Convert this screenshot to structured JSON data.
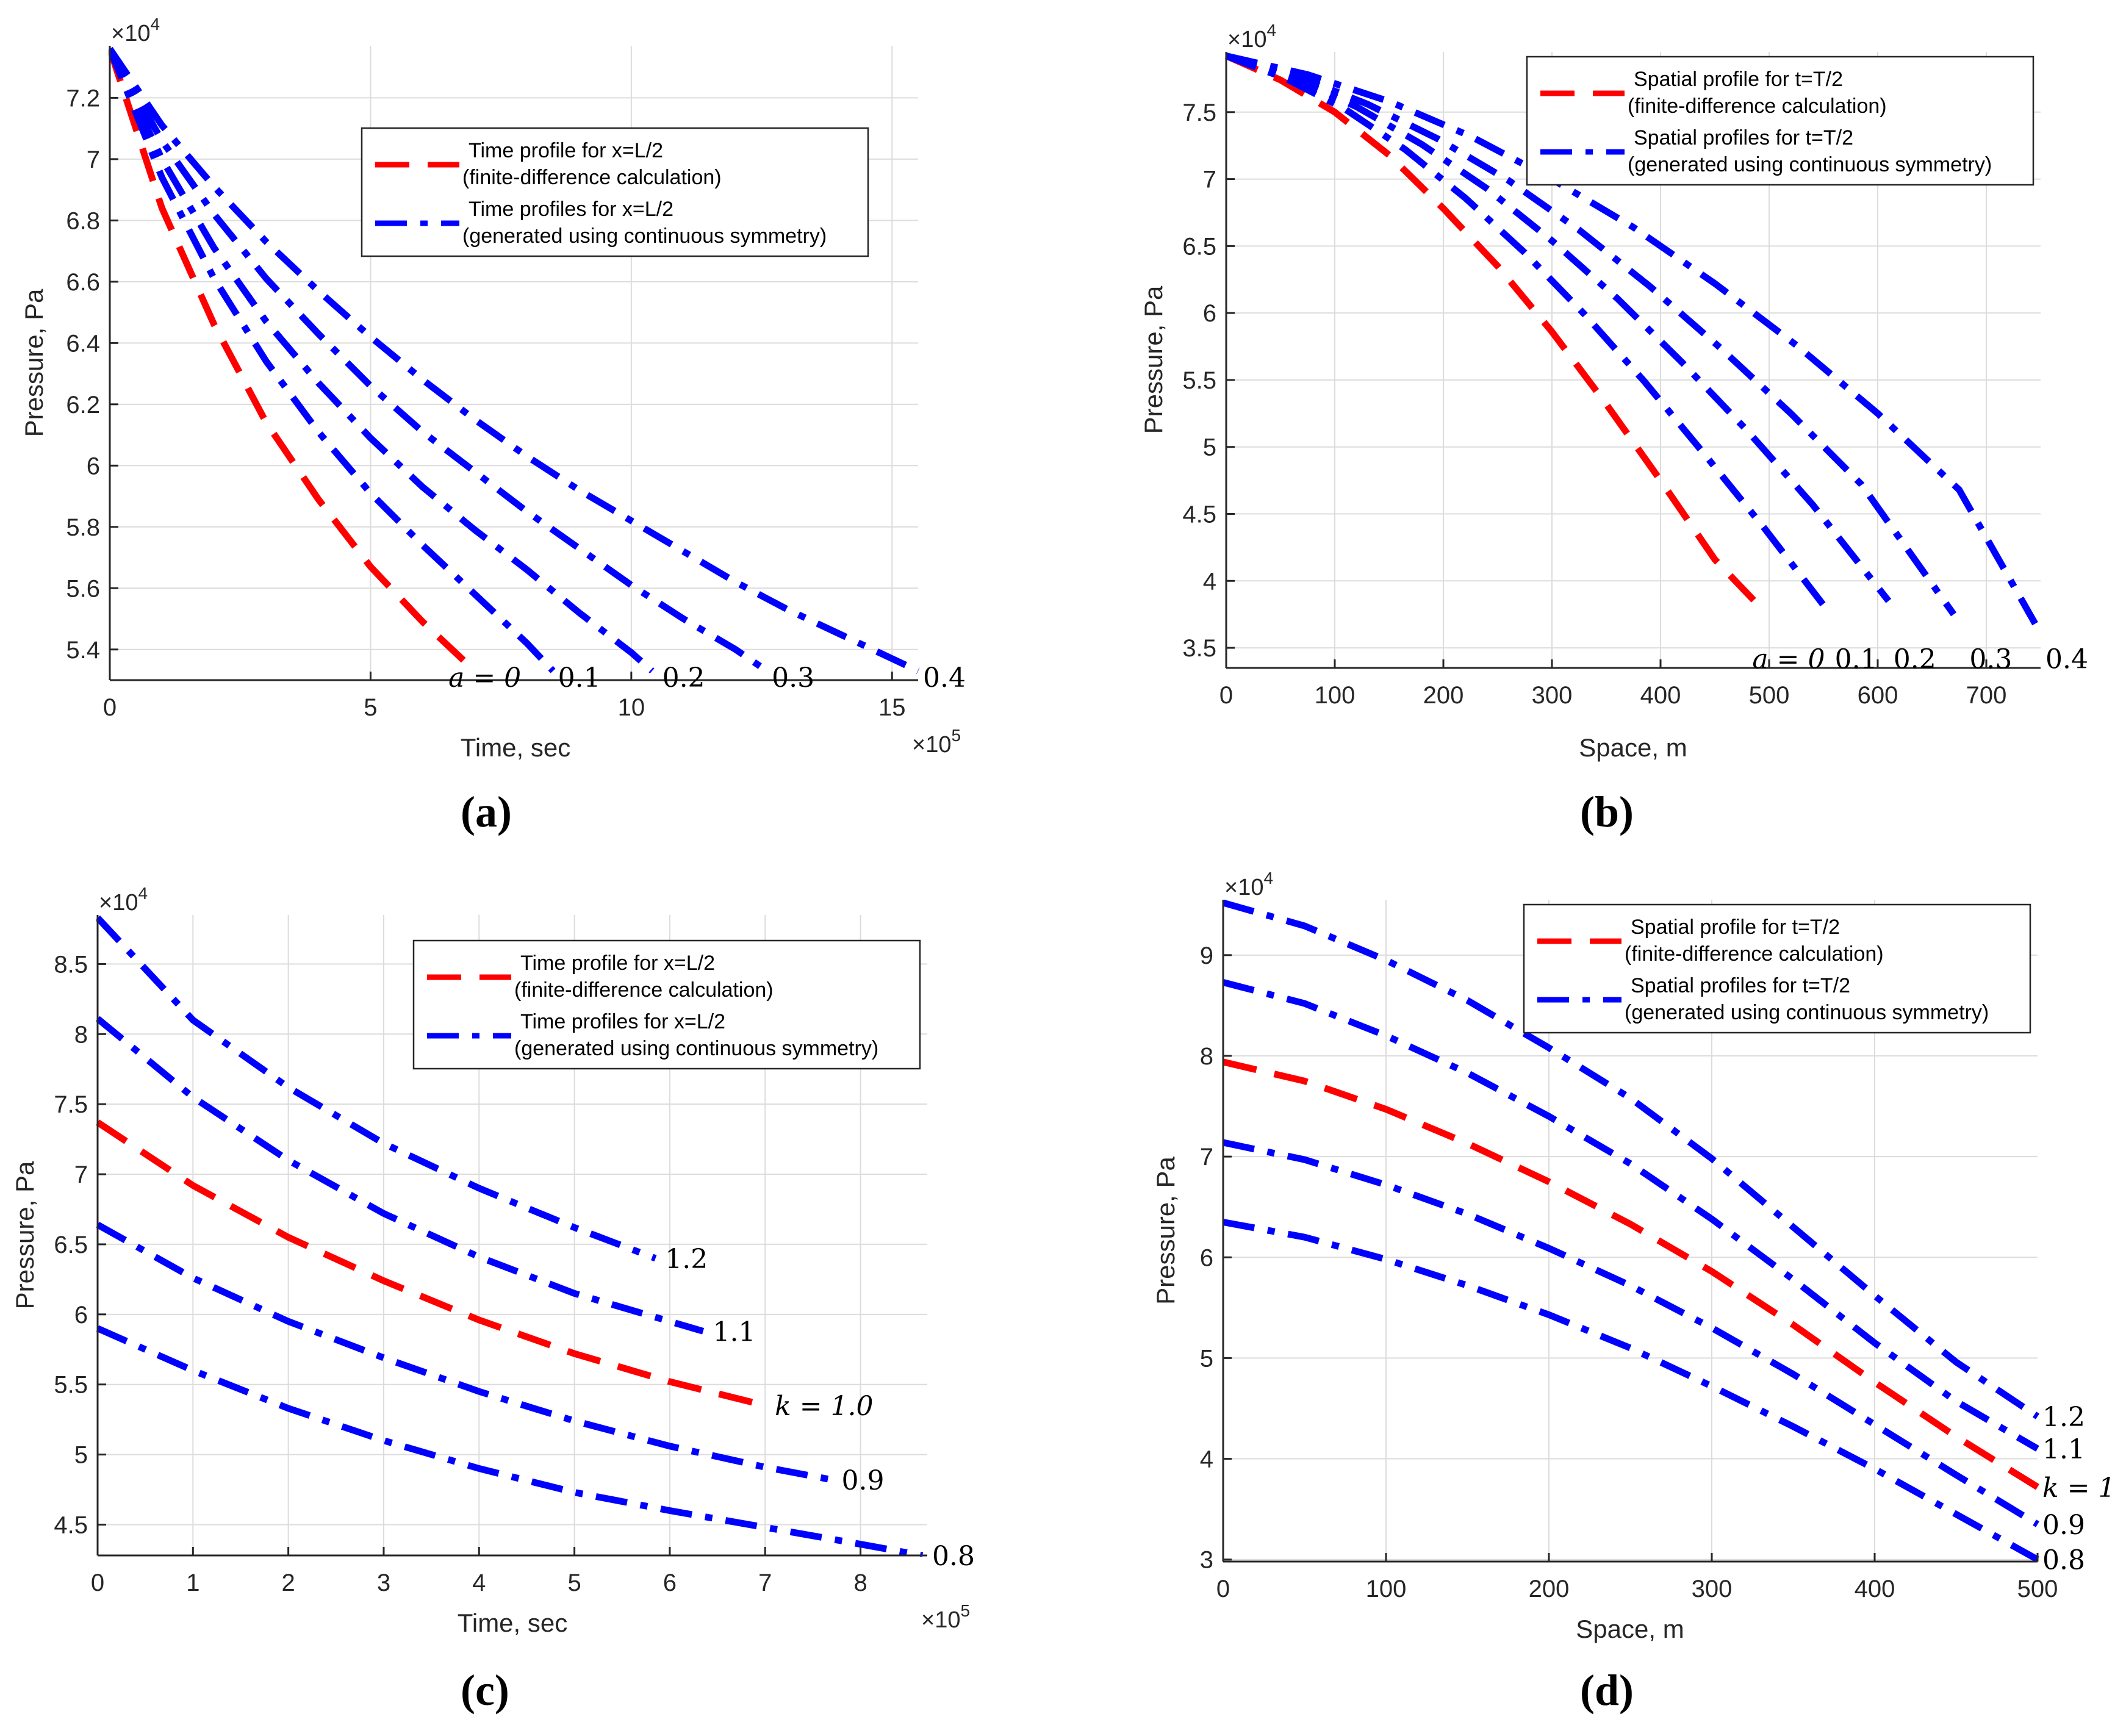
{
  "colors": {
    "fd": "#ff0000",
    "sym": "#0000ff",
    "grid": "#dcdcdc",
    "axis": "#262626"
  },
  "panel_labels": [
    "(a)",
    "(b)",
    "(c)",
    "(d)"
  ],
  "chart_data": [
    {
      "type": "line",
      "panel": "a",
      "xlabel": "Time, sec",
      "ylabel": "Pressure, Pa",
      "x_multiplier": "×10^5",
      "y_multiplier": "×10^4",
      "xlim": [
        0,
        15.5
      ],
      "ylim": [
        5.3,
        7.37
      ],
      "xticks": [
        0,
        5,
        10,
        15
      ],
      "yticks": [
        5.4,
        5.6,
        5.8,
        6.0,
        6.2,
        6.4,
        6.6,
        6.8,
        7.0,
        7.2
      ],
      "xtick_labels": [
        "0",
        "5",
        "10",
        "15"
      ],
      "ytick_labels": [
        "5.4",
        "5.6",
        "5.8",
        "6",
        "6.2",
        "6.4",
        "6.6",
        "6.8",
        "7",
        "7.2"
      ],
      "legend": {
        "position": "top-right",
        "entries": [
          {
            "style": "dashed",
            "color": "fd",
            "lines": [
              "Time profile for x=L/2",
              "(finite-difference calculation)"
            ]
          },
          {
            "style": "dashdot",
            "color": "sym",
            "lines": [
              "Time profiles for x=L/2",
              "(generated using continuous symmetry)"
            ]
          }
        ]
      },
      "series": [
        {
          "name": "a=0",
          "style": "dashed",
          "color": "fd",
          "x": [
            0,
            1,
            2,
            3,
            4,
            5,
            6,
            7
          ],
          "y": [
            7.36,
            6.84,
            6.46,
            6.14,
            5.89,
            5.67,
            5.49,
            5.33
          ]
        },
        {
          "name": "0.1",
          "style": "dashdot",
          "color": "sym",
          "x": [
            0,
            1,
            2,
            3,
            4,
            5,
            6,
            7,
            8,
            8.5
          ],
          "y": [
            7.36,
            6.94,
            6.61,
            6.34,
            6.11,
            5.91,
            5.74,
            5.58,
            5.42,
            5.33
          ]
        },
        {
          "name": "0.2",
          "style": "dashdot",
          "color": "sym",
          "x": [
            0,
            1,
            2,
            3,
            4,
            5,
            6,
            7,
            8,
            9,
            10,
            10.4
          ],
          "y": [
            7.36,
            7.0,
            6.71,
            6.47,
            6.27,
            6.09,
            5.93,
            5.79,
            5.66,
            5.52,
            5.39,
            5.33
          ]
        },
        {
          "name": "0.3",
          "style": "dashdot",
          "color": "sym",
          "x": [
            0,
            1,
            2,
            3,
            4,
            5,
            6,
            7,
            8,
            9,
            10,
            11,
            12,
            12.6
          ],
          "y": [
            7.36,
            7.06,
            6.82,
            6.61,
            6.43,
            6.26,
            6.11,
            5.98,
            5.85,
            5.73,
            5.61,
            5.5,
            5.4,
            5.33
          ]
        },
        {
          "name": "0.4",
          "style": "dashdot",
          "color": "sym",
          "x": [
            0,
            1,
            2,
            3,
            4,
            5,
            6,
            7,
            8,
            9,
            10,
            11,
            12,
            13,
            14,
            15,
            15.5
          ],
          "y": [
            7.36,
            7.11,
            6.91,
            6.73,
            6.57,
            6.42,
            6.28,
            6.15,
            6.03,
            5.92,
            5.82,
            5.72,
            5.62,
            5.53,
            5.45,
            5.37,
            5.33
          ]
        }
      ],
      "curve_labels": [
        {
          "text": "a = 0",
          "x": 6.4,
          "y": 5.31
        },
        {
          "text": "0.1",
          "x": 8.5,
          "y": 5.31
        },
        {
          "text": "0.2",
          "x": 10.5,
          "y": 5.31
        },
        {
          "text": "0.3",
          "x": 12.6,
          "y": 5.31
        },
        {
          "text": "0.4",
          "x": 15.5,
          "y": 5.31
        }
      ]
    },
    {
      "type": "line",
      "panel": "b",
      "xlabel": "Space, m",
      "ylabel": "Pressure, Pa",
      "x_multiplier": "",
      "y_multiplier": "×10^4",
      "xlim": [
        0,
        750
      ],
      "ylim": [
        3.35,
        7.95
      ],
      "xticks": [
        0,
        100,
        200,
        300,
        400,
        500,
        600,
        700
      ],
      "yticks": [
        3.5,
        4.0,
        4.5,
        5.0,
        5.5,
        6.0,
        6.5,
        7.0,
        7.5
      ],
      "xtick_labels": [
        "0",
        "100",
        "200",
        "300",
        "400",
        "500",
        "600",
        "700"
      ],
      "ytick_labels": [
        "3.5",
        "4",
        "4.5",
        "5",
        "5.5",
        "6",
        "6.5",
        "7",
        "7.5"
      ],
      "legend": {
        "position": "top-right",
        "entries": [
          {
            "style": "dashed",
            "color": "fd",
            "lines": [
              "Spatial profile for t=T/2",
              "(finite-difference calculation)"
            ]
          },
          {
            "style": "dashdot",
            "color": "sym",
            "lines": [
              "Spatial profiles for t=T/2",
              "(generated using continuous symmetry)"
            ]
          }
        ]
      },
      "series": [
        {
          "name": "a=0",
          "style": "dashed",
          "color": "fd",
          "x": [
            0,
            50,
            100,
            150,
            200,
            250,
            300,
            350,
            400,
            450,
            490
          ],
          "y": [
            7.92,
            7.74,
            7.5,
            7.18,
            6.78,
            6.35,
            5.86,
            5.32,
            4.75,
            4.16,
            3.82
          ]
        },
        {
          "name": "0.1",
          "style": "dashdot",
          "color": "sym",
          "x": [
            0,
            55,
            110,
            165,
            220,
            275,
            330,
            385,
            440,
            495,
            550
          ],
          "y": [
            7.92,
            7.75,
            7.52,
            7.22,
            6.86,
            6.45,
            5.99,
            5.49,
            4.95,
            4.4,
            3.82
          ]
        },
        {
          "name": "0.2",
          "style": "dashdot",
          "color": "sym",
          "x": [
            0,
            60,
            120,
            180,
            240,
            300,
            360,
            420,
            480,
            540,
            610
          ],
          "y": [
            7.92,
            7.76,
            7.54,
            7.26,
            6.93,
            6.54,
            6.11,
            5.63,
            5.12,
            4.57,
            3.85
          ]
        },
        {
          "name": "0.3",
          "style": "dashdot",
          "color": "sym",
          "x": [
            0,
            65,
            130,
            195,
            260,
            325,
            390,
            455,
            520,
            585,
            670
          ],
          "y": [
            7.92,
            7.77,
            7.56,
            7.3,
            6.99,
            6.62,
            6.2,
            5.74,
            5.25,
            4.72,
            3.75
          ]
        },
        {
          "name": "0.4",
          "style": "dashdot",
          "color": "sym",
          "x": [
            0,
            75,
            150,
            225,
            300,
            375,
            450,
            525,
            600,
            675,
            745
          ],
          "y": [
            7.92,
            7.78,
            7.58,
            7.32,
            7.0,
            6.64,
            6.22,
            5.76,
            5.25,
            4.68,
            3.68
          ]
        }
      ],
      "curve_labels": [
        {
          "text": "a = 0",
          "x": 480,
          "y": 3.42
        },
        {
          "text": "0.1",
          "x": 556,
          "y": 3.42
        },
        {
          "text": "0.2",
          "x": 610,
          "y": 3.42
        },
        {
          "text": "0.3",
          "x": 680,
          "y": 3.42
        },
        {
          "text": "0.4",
          "x": 750,
          "y": 3.42
        }
      ]
    },
    {
      "type": "line",
      "panel": "c",
      "xlabel": "Time, sec",
      "ylabel": "Pressure, Pa",
      "x_multiplier": "×10^5",
      "y_multiplier": "×10^4",
      "xlim": [
        0,
        8.7
      ],
      "ylim": [
        4.28,
        8.85
      ],
      "xticks": [
        0,
        1,
        2,
        3,
        4,
        5,
        6,
        7,
        8
      ],
      "yticks": [
        4.5,
        5.0,
        5.5,
        6.0,
        6.5,
        7.0,
        7.5,
        8.0,
        8.5
      ],
      "xtick_labels": [
        "0",
        "1",
        "2",
        "3",
        "4",
        "5",
        "6",
        "7",
        "8"
      ],
      "ytick_labels": [
        "4.5",
        "5",
        "5.5",
        "6",
        "6.5",
        "7",
        "7.5",
        "8",
        "8.5"
      ],
      "legend": {
        "position": "top-right",
        "entries": [
          {
            "style": "dashed",
            "color": "fd",
            "lines": [
              "Time profile for x=L/2",
              "(finite-difference calculation)"
            ]
          },
          {
            "style": "dashdot",
            "color": "sym",
            "lines": [
              "Time profiles for x=L/2",
              "(generated using continuous symmetry)"
            ]
          }
        ]
      },
      "series": [
        {
          "name": "1.2",
          "style": "dashdot",
          "color": "sym",
          "x": [
            0,
            1,
            2,
            3,
            4,
            5,
            5.85
          ],
          "y": [
            8.83,
            8.1,
            7.62,
            7.22,
            6.9,
            6.62,
            6.4
          ]
        },
        {
          "name": "1.1",
          "style": "dashdot",
          "color": "sym",
          "x": [
            0,
            1,
            2,
            3,
            4,
            5,
            6,
            6.35
          ],
          "y": [
            8.11,
            7.55,
            7.1,
            6.72,
            6.41,
            6.15,
            5.95,
            5.88
          ]
        },
        {
          "name": "k=1.0",
          "style": "dashed",
          "color": "fd",
          "x": [
            0,
            1,
            2,
            3,
            4,
            5,
            6,
            7
          ],
          "y": [
            7.37,
            6.92,
            6.55,
            6.24,
            5.96,
            5.72,
            5.52,
            5.35
          ]
        },
        {
          "name": "0.9",
          "style": "dashdot",
          "color": "sym",
          "x": [
            0,
            1,
            2,
            3,
            4,
            5,
            6,
            7,
            7.7
          ],
          "y": [
            6.64,
            6.26,
            5.95,
            5.69,
            5.45,
            5.24,
            5.06,
            4.91,
            4.82
          ]
        },
        {
          "name": "0.8",
          "style": "dashdot",
          "color": "sym",
          "x": [
            0,
            1,
            2,
            3,
            4,
            5,
            6,
            7,
            8,
            8.65
          ],
          "y": [
            5.9,
            5.6,
            5.33,
            5.1,
            4.9,
            4.73,
            4.6,
            4.48,
            4.36,
            4.28
          ]
        }
      ],
      "curve_labels": [
        {
          "text": "1.2",
          "x": 5.9,
          "y": 6.4
        },
        {
          "text": "1.1",
          "x": 6.4,
          "y": 5.88
        },
        {
          "text": "k = 1.0",
          "x": 7.05,
          "y": 5.35
        },
        {
          "text": "0.9",
          "x": 7.75,
          "y": 4.82
        },
        {
          "text": "0.8",
          "x": 8.7,
          "y": 4.28
        }
      ]
    },
    {
      "type": "line",
      "panel": "d",
      "xlabel": "Space, m",
      "ylabel": "Pressure, Pa",
      "x_multiplier": "",
      "y_multiplier": "×10^4",
      "xlim": [
        0,
        500
      ],
      "ylim": [
        2.98,
        9.55
      ],
      "xticks": [
        0,
        100,
        200,
        300,
        400,
        500
      ],
      "yticks": [
        3,
        4,
        5,
        6,
        7,
        8,
        9
      ],
      "xtick_labels": [
        "0",
        "100",
        "200",
        "300",
        "400",
        "500"
      ],
      "ytick_labels": [
        "3",
        "4",
        "5",
        "6",
        "7",
        "8",
        "9"
      ],
      "legend": {
        "position": "top-right",
        "entries": [
          {
            "style": "dashed",
            "color": "fd",
            "lines": [
              "Spatial profile for t=T/2",
              "(finite-difference calculation)"
            ]
          },
          {
            "style": "dashdot",
            "color": "sym",
            "lines": [
              "Spatial profiles for t=T/2",
              "(generated using continuous symmetry)"
            ]
          }
        ]
      },
      "series": [
        {
          "name": "1.2",
          "style": "dashdot",
          "color": "sym",
          "x": [
            0,
            50,
            100,
            150,
            200,
            250,
            300,
            350,
            400,
            450,
            500
          ],
          "y": [
            9.52,
            9.29,
            8.95,
            8.55,
            8.08,
            7.58,
            6.98,
            6.3,
            5.62,
            4.96,
            4.42
          ]
        },
        {
          "name": "1.1",
          "style": "dashdot",
          "color": "sym",
          "x": [
            0,
            50,
            100,
            150,
            200,
            250,
            300,
            350,
            400,
            450,
            500
          ],
          "y": [
            8.73,
            8.52,
            8.2,
            7.83,
            7.4,
            6.93,
            6.38,
            5.78,
            5.15,
            4.57,
            4.1
          ]
        },
        {
          "name": "k=1",
          "style": "dashed",
          "color": "fd",
          "x": [
            0,
            50,
            100,
            150,
            200,
            250,
            300,
            350,
            400,
            450,
            500
          ],
          "y": [
            7.94,
            7.75,
            7.47,
            7.13,
            6.75,
            6.33,
            5.86,
            5.33,
            4.76,
            4.22,
            3.72
          ]
        },
        {
          "name": "0.9",
          "style": "dashdot",
          "color": "sym",
          "x": [
            0,
            50,
            100,
            150,
            200,
            250,
            300,
            350,
            400,
            450,
            500
          ],
          "y": [
            7.14,
            6.97,
            6.72,
            6.43,
            6.09,
            5.72,
            5.3,
            4.84,
            4.34,
            3.84,
            3.35
          ]
        },
        {
          "name": "0.8",
          "style": "dashdot",
          "color": "sym",
          "x": [
            0,
            50,
            100,
            150,
            200,
            250,
            300,
            350,
            400,
            450,
            500
          ],
          "y": [
            6.35,
            6.2,
            5.98,
            5.72,
            5.43,
            5.1,
            4.72,
            4.32,
            3.9,
            3.45,
            3.0
          ]
        }
      ],
      "curve_labels": [
        {
          "text": "1.2",
          "x": 500,
          "y": 4.42
        },
        {
          "text": "1.1",
          "x": 500,
          "y": 4.1
        },
        {
          "text": "k = 1",
          "x": 500,
          "y": 3.72
        },
        {
          "text": "0.9",
          "x": 500,
          "y": 3.35
        },
        {
          "text": "0.8",
          "x": 500,
          "y": 3.0
        }
      ]
    }
  ]
}
